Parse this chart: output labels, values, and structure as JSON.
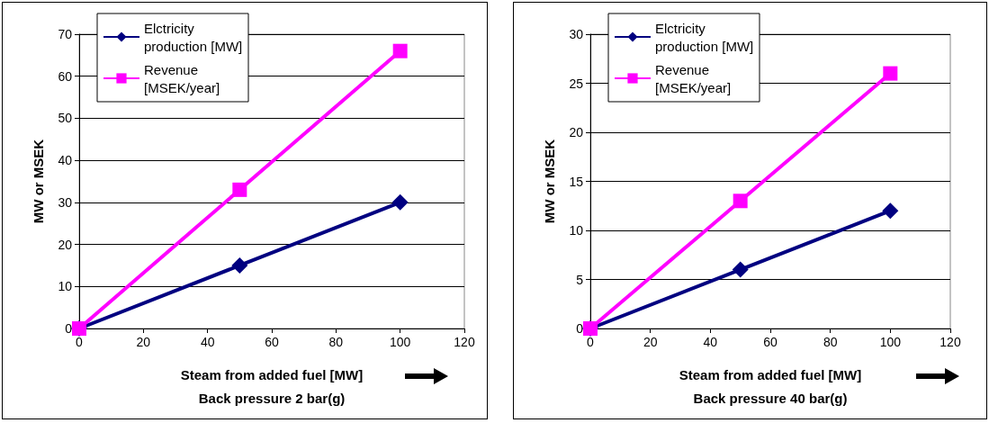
{
  "chart_data": [
    {
      "type": "line",
      "xlabel": "Steam from added fuel [MW]\nBack pressure 2 bar(g)",
      "ylabel": "MW or MSEK",
      "x": [
        0,
        50,
        100
      ],
      "xlim": [
        0,
        120
      ],
      "xticks": [
        0,
        20,
        40,
        60,
        80,
        100,
        120
      ],
      "ylim": [
        0,
        70
      ],
      "yticks": [
        0,
        10,
        20,
        30,
        40,
        50,
        60,
        70
      ],
      "grid": "y",
      "legend": "top left",
      "series": [
        {
          "name": "Elctricity production [MW]",
          "color": "#000080",
          "marker": "diamond",
          "values": [
            0,
            15,
            30
          ]
        },
        {
          "name": "Revenue [MSEK/year]",
          "color": "#ff00ff",
          "marker": "square",
          "values": [
            0,
            33,
            66
          ]
        }
      ]
    },
    {
      "type": "line",
      "xlabel": "Steam from added fuel [MW]\nBack pressure 40 bar(g)",
      "ylabel": "MW or MSEK",
      "x": [
        0,
        50,
        100
      ],
      "xlim": [
        0,
        120
      ],
      "xticks": [
        0,
        20,
        40,
        60,
        80,
        100,
        120
      ],
      "ylim": [
        0,
        30
      ],
      "yticks": [
        0,
        5,
        10,
        15,
        20,
        25,
        30
      ],
      "grid": "y",
      "legend": "top left",
      "series": [
        {
          "name": "Elctricity production [MW]",
          "color": "#000080",
          "marker": "diamond",
          "values": [
            0,
            6,
            12
          ]
        },
        {
          "name": "Revenue [MSEK/year]",
          "color": "#ff00ff",
          "marker": "square",
          "values": [
            0,
            13,
            26
          ]
        }
      ]
    }
  ]
}
